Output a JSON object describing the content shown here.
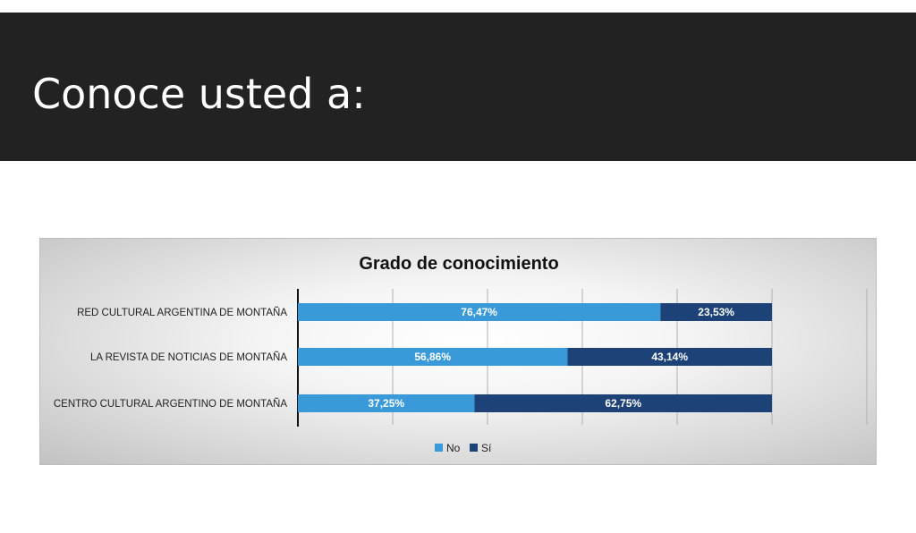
{
  "slide": {
    "title": "Conoce usted a:"
  },
  "colors": {
    "no": "#3a9ad9",
    "si": "#1c4278",
    "header_bg": "#222222"
  },
  "chart_data": {
    "type": "bar",
    "orientation": "horizontal",
    "stacked": true,
    "title": "Grado de conocimiento",
    "categories": [
      "RED CULTURAL ARGENTINA DE MONTAÑA",
      "LA REVISTA DE NOTICIAS DE MONTAÑA",
      "CENTRO CULTURAL ARGENTINO DE MONTAÑA"
    ],
    "series": [
      {
        "name": "No",
        "values": [
          76.47,
          56.86,
          37.25
        ],
        "labels": [
          "76,47%",
          "56,86%",
          "37,25%"
        ]
      },
      {
        "name": "Sí",
        "values": [
          23.53,
          43.14,
          62.75
        ],
        "labels": [
          "23,53%",
          "43,14%",
          "62,75%"
        ]
      }
    ],
    "xlim": [
      0,
      100
    ],
    "grid": true,
    "legend": "bottom"
  }
}
